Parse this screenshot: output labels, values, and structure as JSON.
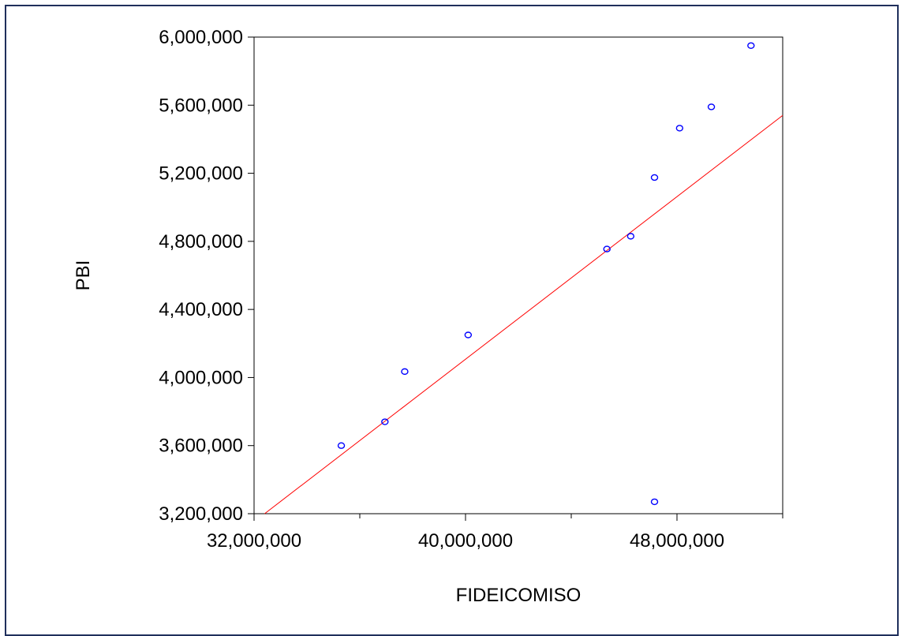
{
  "chart_data": {
    "type": "scatter",
    "title": "",
    "xlabel": "FIDEICOMISO",
    "ylabel": "PBI",
    "xlim": [
      32000000,
      52000000
    ],
    "ylim": [
      3200000,
      6000000
    ],
    "xticks_major": [
      32000000,
      40000000,
      48000000
    ],
    "xtick_labels": [
      "32,000,000",
      "40,000,000",
      "48,000,000"
    ],
    "xticks_minor": [
      36000000,
      44000000,
      52000000
    ],
    "yticks": [
      3200000,
      3600000,
      4000000,
      4400000,
      4800000,
      5200000,
      5600000,
      6000000
    ],
    "ytick_labels": [
      "3,200,000",
      "3,600,000",
      "4,000,000",
      "4,400,000",
      "4,800,000",
      "5,200,000",
      "5,600,000",
      "6,000,000"
    ],
    "grid": false,
    "points": [
      {
        "x": 35300000,
        "y": 3600000
      },
      {
        "x": 36950000,
        "y": 3740000
      },
      {
        "x": 37700000,
        "y": 4035000
      },
      {
        "x": 40100000,
        "y": 4250000
      },
      {
        "x": 45350000,
        "y": 4755000
      },
      {
        "x": 46250000,
        "y": 4830000
      },
      {
        "x": 47150000,
        "y": 5175000
      },
      {
        "x": 48100000,
        "y": 5465000
      },
      {
        "x": 49300000,
        "y": 5590000
      },
      {
        "x": 50800000,
        "y": 5950000
      },
      {
        "x": 47150000,
        "y": 3270000
      }
    ],
    "fit_line": {
      "x": [
        32400000,
        52000000
      ],
      "y": [
        3200000,
        5540000
      ]
    },
    "colors": {
      "points": "#0000ff",
      "fit_line": "#ff0000",
      "axes": "#000000",
      "frame": "#1f2f5c"
    }
  }
}
